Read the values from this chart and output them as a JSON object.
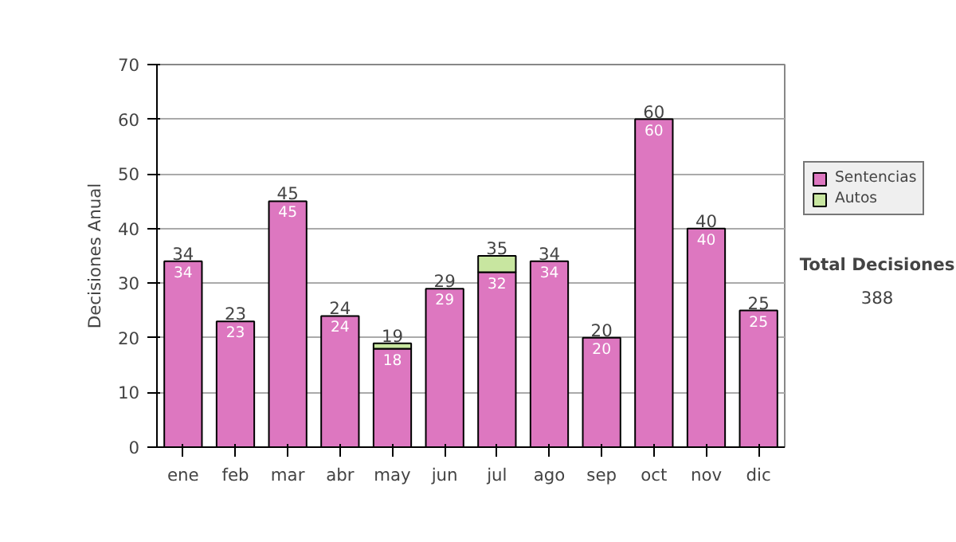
{
  "chart_data": {
    "type": "bar",
    "stacked": true,
    "ylabel": "Decisiones Anual",
    "categories": [
      "ene",
      "feb",
      "mar",
      "abr",
      "may",
      "jun",
      "jul",
      "ago",
      "sep",
      "oct",
      "nov",
      "dic"
    ],
    "series": [
      {
        "name": "Sentencias",
        "color": "#dd77c0",
        "values": [
          34,
          23,
          45,
          24,
          18,
          29,
          32,
          34,
          20,
          60,
          40,
          25
        ],
        "value_labels": [
          "34",
          "23",
          "45",
          "24",
          "18",
          "29",
          "32",
          "34",
          "20",
          "60",
          "40",
          "25"
        ]
      },
      {
        "name": "Autos",
        "color": "#c8e6a0",
        "values": [
          null,
          null,
          null,
          null,
          1,
          null,
          3,
          null,
          null,
          null,
          null,
          null
        ]
      }
    ],
    "totals": [
      "34",
      "23",
      "45",
      "24",
      "19",
      "29",
      "35",
      "34",
      "20",
      "60",
      "40",
      "25"
    ],
    "ylim": [
      0,
      70
    ],
    "yticks": [
      0,
      10,
      20,
      30,
      40,
      50,
      60,
      70
    ],
    "grid": "y",
    "legend": "right",
    "annotations": [
      "Total Decisiones",
      "388"
    ]
  }
}
